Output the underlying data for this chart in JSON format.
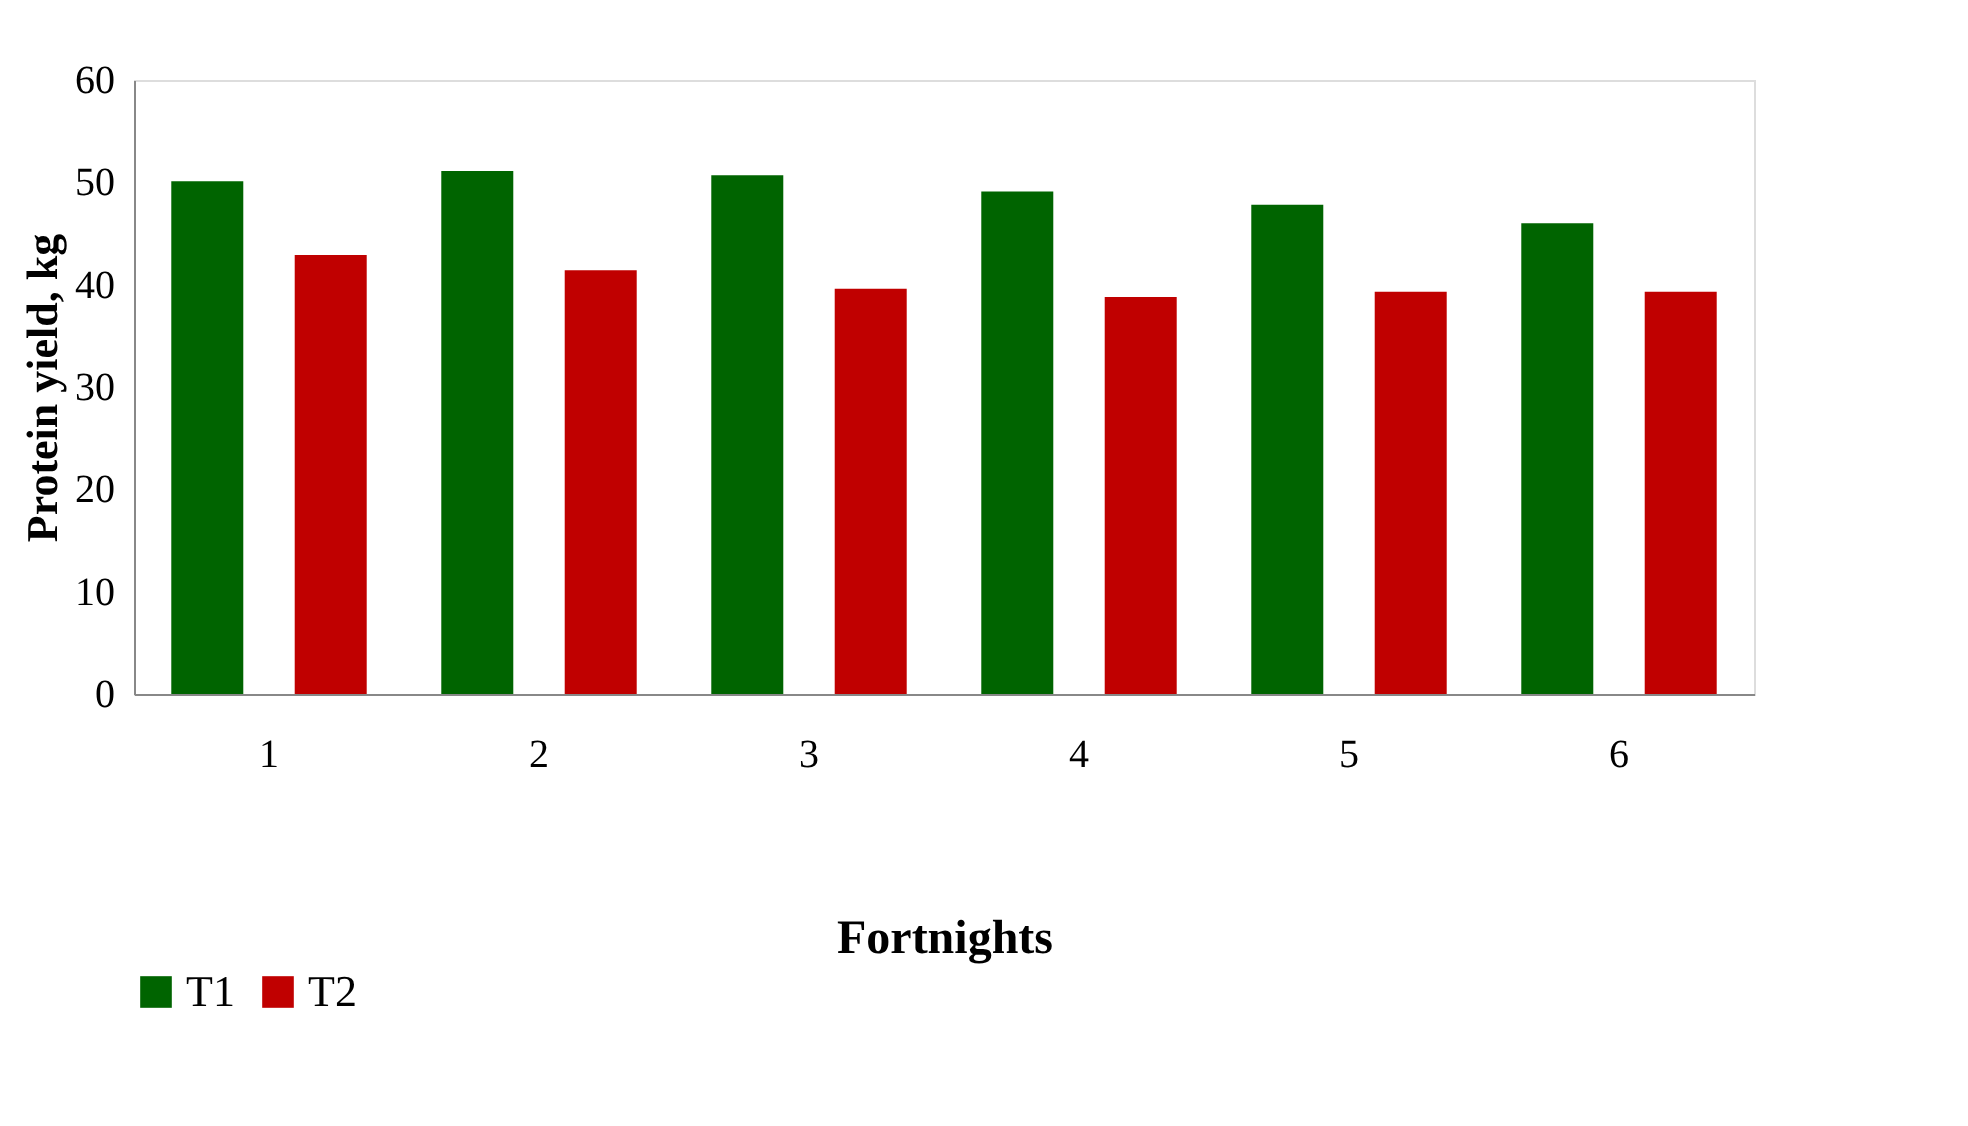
{
  "chart_data": {
    "type": "bar",
    "xlabel": "Fortnights",
    "ylabel": "Protein yield, kg",
    "categories": [
      "1",
      "2",
      "3",
      "4",
      "5",
      "6"
    ],
    "series": [
      {
        "name": "T1",
        "color": "#006400",
        "values": [
          50.1,
          51.1,
          50.7,
          49.1,
          47.8,
          46.0
        ]
      },
      {
        "name": "T2",
        "color": "#c00000",
        "values": [
          42.9,
          41.4,
          39.6,
          38.8,
          39.3,
          39.3
        ]
      }
    ],
    "ylim": [
      0,
      60
    ],
    "yticks": [
      0,
      10,
      20,
      30,
      40,
      50,
      60
    ],
    "grid": false,
    "legend": "bottom"
  }
}
